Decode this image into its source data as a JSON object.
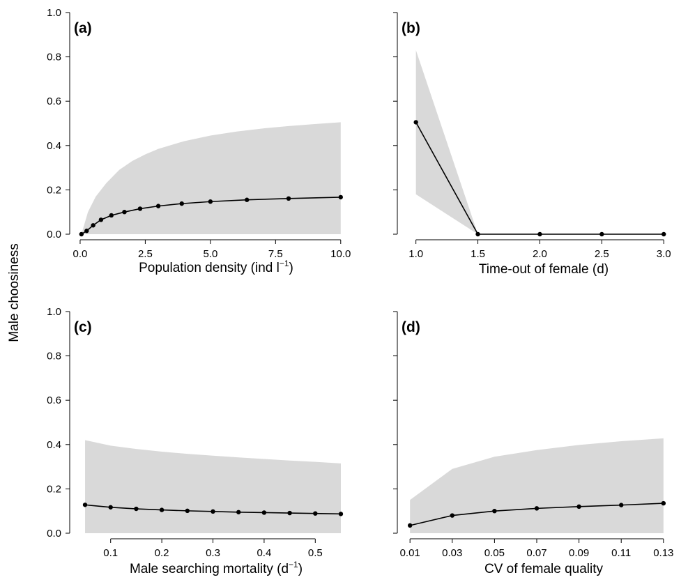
{
  "figure": {
    "ylabel": "Male choosiness"
  },
  "chart_data": [
    {
      "type": "line",
      "panel_label": "(a)",
      "xlabel": "Population density (ind l",
      "xlabel_sup": "−1",
      "xlabel_suffix": ")",
      "xlim": [
        -0.4,
        10.3
      ],
      "ylim": [
        0,
        1.0
      ],
      "x_ticks": [
        0.0,
        2.5,
        5.0,
        7.5,
        10.0
      ],
      "x_tick_labels": [
        "0.0",
        "2.5",
        "5.0",
        "7.5",
        "10.0"
      ],
      "y_ticks": [
        0,
        0.2,
        0.4,
        0.6,
        0.8,
        1.0
      ],
      "y_tick_labels": [
        "0.0",
        "0.2",
        "0.4",
        "0.6",
        "0.8",
        "1.0"
      ],
      "series": [
        {
          "x": [
            0.05,
            0.25,
            0.5,
            0.8,
            1.2,
            1.7,
            2.3,
            3.0,
            3.9,
            5.0,
            6.4,
            8.0,
            10.0
          ],
          "y": [
            0.0,
            0.015,
            0.04,
            0.065,
            0.085,
            0.1,
            0.115,
            0.127,
            0.138,
            0.147,
            0.155,
            0.161,
            0.167
          ]
        }
      ],
      "band": {
        "x": [
          0.05,
          0.3,
          0.6,
          1.0,
          1.5,
          2.0,
          2.5,
          3.0,
          4.0,
          5.0,
          6.0,
          7.0,
          8.0,
          9.0,
          10.0
        ],
        "upper": [
          0.0,
          0.1,
          0.17,
          0.23,
          0.29,
          0.33,
          0.36,
          0.385,
          0.42,
          0.445,
          0.463,
          0.477,
          0.488,
          0.497,
          0.505
        ],
        "lower": [
          0,
          0,
          0,
          0,
          0,
          0,
          0,
          0,
          0,
          0,
          0,
          0,
          0,
          0,
          0
        ]
      }
    },
    {
      "type": "line",
      "panel_label": "(b)",
      "xlabel": "Time-out of female (d)",
      "xlim": [
        0.85,
        3.1
      ],
      "ylim": [
        0,
        1.0
      ],
      "x_ticks": [
        1.0,
        1.5,
        2.0,
        2.5,
        3.0
      ],
      "x_tick_labels": [
        "1.0",
        "1.5",
        "2.0",
        "2.5",
        "3.0"
      ],
      "y_ticks": [
        0,
        0.2,
        0.4,
        0.6,
        0.8,
        1.0
      ],
      "series": [
        {
          "x": [
            1.0,
            1.5,
            2.0,
            2.5,
            3.0
          ],
          "y": [
            0.505,
            0.0,
            0.0,
            0.0,
            0.0
          ]
        }
      ],
      "band": {
        "x": [
          1.0,
          1.5
        ],
        "upper": [
          0.83,
          0.0
        ],
        "lower": [
          0.18,
          0.0
        ]
      }
    },
    {
      "type": "line",
      "panel_label": "(c)",
      "xlabel": "Male searching mortality (d",
      "xlabel_sup": "−1",
      "xlabel_suffix": ")",
      "xlim": [
        0.02,
        0.565
      ],
      "ylim": [
        0,
        1.0
      ],
      "x_ticks": [
        0.1,
        0.2,
        0.3,
        0.4,
        0.5
      ],
      "x_tick_labels": [
        "0.1",
        "0.2",
        "0.3",
        "0.4",
        "0.5"
      ],
      "y_ticks": [
        0,
        0.2,
        0.4,
        0.6,
        0.8,
        1.0
      ],
      "y_tick_labels": [
        "0.0",
        "0.2",
        "0.4",
        "0.6",
        "0.8",
        "1.0"
      ],
      "series": [
        {
          "x": [
            0.05,
            0.1,
            0.15,
            0.2,
            0.25,
            0.3,
            0.35,
            0.4,
            0.45,
            0.5,
            0.55
          ],
          "y": [
            0.128,
            0.117,
            0.11,
            0.105,
            0.101,
            0.098,
            0.095,
            0.093,
            0.091,
            0.089,
            0.087
          ]
        }
      ],
      "band": {
        "x": [
          0.05,
          0.1,
          0.15,
          0.2,
          0.25,
          0.3,
          0.35,
          0.4,
          0.45,
          0.5,
          0.55
        ],
        "upper": [
          0.42,
          0.395,
          0.38,
          0.368,
          0.358,
          0.35,
          0.342,
          0.335,
          0.328,
          0.322,
          0.315
        ],
        "lower": [
          0,
          0,
          0,
          0,
          0,
          0,
          0,
          0,
          0,
          0,
          0
        ]
      }
    },
    {
      "type": "line",
      "panel_label": "(d)",
      "xlabel": "CV of female quality",
      "xlim": [
        0.004,
        0.136
      ],
      "ylim": [
        0,
        1.0
      ],
      "x_ticks": [
        0.01,
        0.03,
        0.05,
        0.07,
        0.09,
        0.11,
        0.13
      ],
      "x_tick_labels": [
        "0.01",
        "0.03",
        "0.05",
        "0.07",
        "0.09",
        "0.11",
        "0.13"
      ],
      "y_ticks": [
        0,
        0.2,
        0.4,
        0.6,
        0.8,
        1.0
      ],
      "series": [
        {
          "x": [
            0.01,
            0.03,
            0.05,
            0.07,
            0.09,
            0.11,
            0.13
          ],
          "y": [
            0.035,
            0.08,
            0.1,
            0.112,
            0.12,
            0.127,
            0.135
          ]
        }
      ],
      "band": {
        "x": [
          0.01,
          0.03,
          0.05,
          0.07,
          0.09,
          0.11,
          0.13
        ],
        "upper": [
          0.15,
          0.29,
          0.345,
          0.375,
          0.398,
          0.415,
          0.428
        ],
        "lower": [
          0,
          0,
          0,
          0,
          0,
          0,
          0
        ]
      }
    }
  ],
  "style": {
    "band_color": "#d9d9d9",
    "line_color": "#000000",
    "axis_color": "#000000"
  }
}
